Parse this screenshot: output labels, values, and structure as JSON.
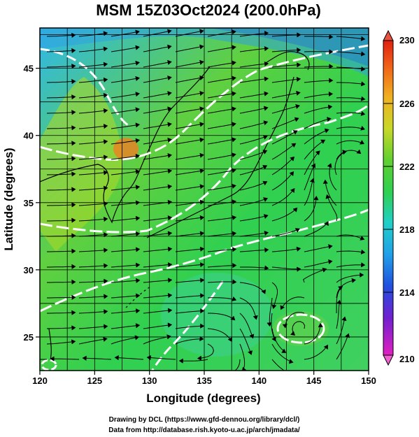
{
  "title": "MSM 15Z03Oct2024 (200.0hPa)",
  "xlabel": "Longitude (degrees)",
  "ylabel": "Latitude  (degrees)",
  "x_ticks": [
    "120",
    "125",
    "130",
    "135",
    "140",
    "145",
    "150"
  ],
  "y_ticks": [
    "25",
    "30",
    "35",
    "40",
    "45"
  ],
  "colorbar": {
    "ticks": [
      "210",
      "214",
      "218",
      "222",
      "226",
      "230"
    ],
    "range": [
      210,
      230
    ]
  },
  "credits": [
    "Drawing by DCL (https://www.gfd-dennou.org/library/dcl/)",
    "Data from http://database.rish.kyoto-u.ac.jp/arch/jmadata/"
  ],
  "colors": {
    "warm": "#f07818",
    "mid": "#30d050",
    "cool": "#2080e0",
    "contour": "#ffffff",
    "streamline": "#000000"
  },
  "map": {
    "lon_range": [
      120,
      150
    ],
    "lat_range": [
      22.5,
      48
    ],
    "field": "temperature (K)",
    "contours": "white dashed isotherms",
    "vectors": "black wind streamlines"
  }
}
